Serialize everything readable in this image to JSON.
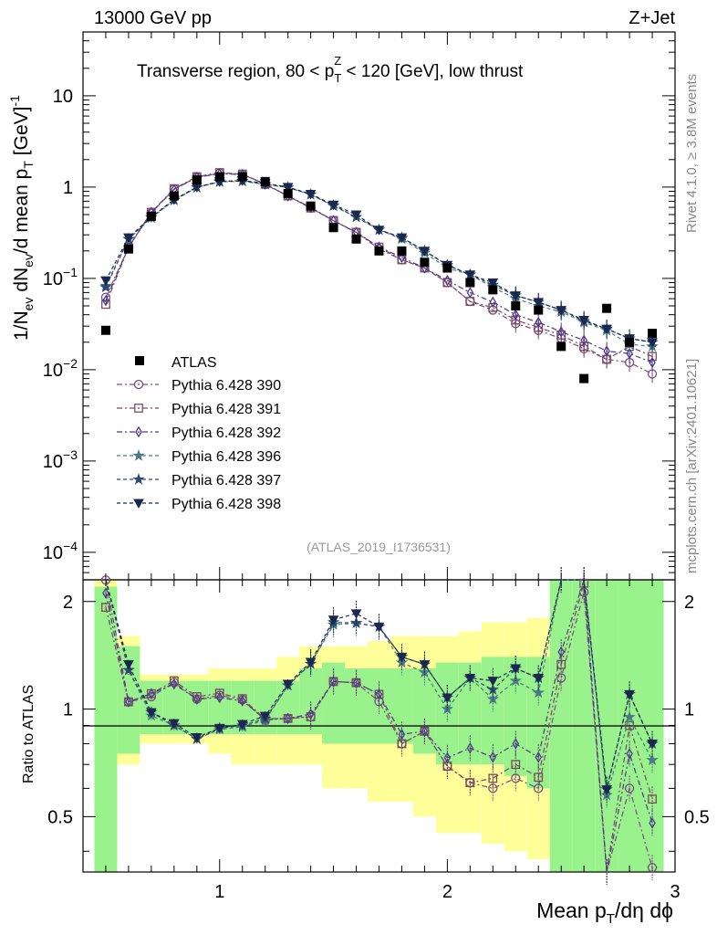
{
  "chart_data": {
    "type": "scatter",
    "header_left": "13000 GeV pp",
    "header_right": "Z+Jet",
    "title": "Transverse region, 80 < p",
    "title_sup": "Z",
    "title_sub": "T",
    "title_tail": " < 120 [GeV], low thrust",
    "ylabel_main": "1/N",
    "ylabel_sub1": "ev",
    "ylabel_mid": " dN",
    "ylabel_sub2": "ev",
    "ylabel_mid2": "/d mean p",
    "ylabel_sub3": "T",
    "ylabel_tail": " [GeV]",
    "ylabel_sup": "-1",
    "ratio_ylabel": "Ratio to ATLAS",
    "xlabel_main": "Mean p",
    "xlabel_sub": "T",
    "xlabel_tail": "/dη dϕ",
    "side_text_1": "Rivet 4.1.0, ≥ 3.8M events",
    "side_text_2": "mcplots.cern.ch [arXiv:2401.10621]",
    "analysis_id": "(ATLAS_2019_I1736531)",
    "xlim": [
      0.4,
      3.0
    ],
    "ylim": [
      5e-05,
      50
    ],
    "ratio_ylim": [
      0.35,
      2.3
    ],
    "x_ticks": [
      "1",
      "2",
      "3"
    ],
    "y_tick_labels": [
      {
        "value": 10,
        "base": "10",
        "exp": ""
      },
      {
        "value": 1,
        "base": "1",
        "exp": ""
      },
      {
        "value": 0.1,
        "base": "10",
        "exp": "−1"
      },
      {
        "value": 0.01,
        "base": "10",
        "exp": "−2"
      },
      {
        "value": 0.001,
        "base": "10",
        "exp": "−3"
      },
      {
        "value": 0.0001,
        "base": "10",
        "exp": "−4"
      }
    ],
    "ratio_ticks": [
      "0.5",
      "1",
      "2"
    ],
    "x": [
      0.5,
      0.6,
      0.7,
      0.8,
      0.9,
      1.0,
      1.1,
      1.2,
      1.3,
      1.4,
      1.5,
      1.6,
      1.7,
      1.8,
      1.9,
      2.0,
      2.1,
      2.2,
      2.3,
      2.4,
      2.5,
      2.6,
      2.7,
      2.8,
      2.9
    ],
    "atlas": {
      "name": "ATLAS",
      "values": [
        0.027,
        0.21,
        0.48,
        0.8,
        1.2,
        1.3,
        1.3,
        1.15,
        0.85,
        0.62,
        0.36,
        0.27,
        0.2,
        0.2,
        0.15,
        0.13,
        0.09,
        0.075,
        0.05,
        0.045,
        0.018,
        0.008,
        0.047,
        0.02,
        0.025
      ]
    },
    "series": [
      {
        "name": "Pythia 6.428 390",
        "color": "#7d4a86",
        "marker": "circle",
        "values": [
          0.062,
          0.22,
          0.52,
          0.95,
          1.28,
          1.42,
          1.38,
          1.07,
          0.8,
          0.59,
          0.43,
          0.32,
          0.21,
          0.16,
          0.13,
          0.09,
          0.056,
          0.045,
          0.032,
          0.027,
          0.022,
          0.017,
          0.013,
          0.012,
          0.009
        ]
      },
      {
        "name": "Pythia 6.428 391",
        "color": "#7a4a5e",
        "marker": "square",
        "values": [
          0.052,
          0.22,
          0.53,
          0.96,
          1.3,
          1.44,
          1.39,
          1.08,
          0.8,
          0.59,
          0.43,
          0.32,
          0.22,
          0.16,
          0.13,
          0.09,
          0.056,
          0.048,
          0.035,
          0.029,
          0.024,
          0.018,
          0.013,
          0.018,
          0.014
        ]
      },
      {
        "name": "Pythia 6.428 392",
        "color": "#4e3a8a",
        "marker": "diamond",
        "values": [
          0.057,
          0.22,
          0.53,
          0.94,
          1.28,
          1.4,
          1.37,
          1.08,
          0.8,
          0.6,
          0.43,
          0.32,
          0.22,
          0.17,
          0.13,
          0.095,
          0.07,
          0.055,
          0.04,
          0.033,
          0.026,
          0.021,
          0.016,
          0.015,
          0.012
        ]
      },
      {
        "name": "Pythia 6.428 396",
        "color": "#4a7a85",
        "marker": "star",
        "values": [
          0.083,
          0.27,
          0.46,
          0.72,
          0.99,
          1.14,
          1.16,
          1.07,
          0.99,
          0.83,
          0.62,
          0.47,
          0.34,
          0.27,
          0.19,
          0.13,
          0.11,
          0.08,
          0.06,
          0.05,
          0.043,
          0.033,
          0.027,
          0.019,
          0.018
        ]
      },
      {
        "name": "Pythia 6.428 397",
        "color": "#2e4a6e",
        "marker": "star",
        "values": [
          0.08,
          0.27,
          0.47,
          0.72,
          0.99,
          1.15,
          1.17,
          1.08,
          0.99,
          0.83,
          0.63,
          0.47,
          0.34,
          0.28,
          0.2,
          0.14,
          0.11,
          0.085,
          0.065,
          0.055,
          0.045,
          0.034,
          0.028,
          0.022,
          0.02
        ]
      },
      {
        "name": "Pythia 6.428 398",
        "color": "#1a2850",
        "marker": "triangle-down",
        "values": [
          0.095,
          0.28,
          0.47,
          0.73,
          1.0,
          1.15,
          1.18,
          1.1,
          1.0,
          0.84,
          0.64,
          0.5,
          0.34,
          0.28,
          0.2,
          0.14,
          0.11,
          0.09,
          0.065,
          0.055,
          0.045,
          0.035,
          0.028,
          0.022,
          0.02
        ]
      }
    ],
    "band_inner": [
      2.2,
      1.5,
      1.2,
      1.2,
      1.2,
      1.2,
      1.2,
      1.2,
      1.2,
      1.3,
      1.35,
      1.3,
      1.3,
      1.3,
      1.3,
      1.35,
      1.35,
      1.4,
      1.4,
      1.4,
      2.3,
      2.3,
      2.3,
      2.3,
      2.3
    ],
    "band_inner_low": [
      0.35,
      0.75,
      0.85,
      0.85,
      0.85,
      0.85,
      0.85,
      0.85,
      0.85,
      0.85,
      0.8,
      0.8,
      0.8,
      0.8,
      0.75,
      0.7,
      0.7,
      0.7,
      0.65,
      0.6,
      0.35,
      0.35,
      0.35,
      0.35,
      0.35
    ],
    "band_outer": [
      2.3,
      1.6,
      1.25,
      1.25,
      1.25,
      1.3,
      1.3,
      1.3,
      1.4,
      1.5,
      1.5,
      1.5,
      1.55,
      1.6,
      1.6,
      1.6,
      1.65,
      1.75,
      1.75,
      1.8,
      2.3,
      2.3,
      2.3,
      2.3,
      2.3
    ],
    "band_outer_low": [
      0.35,
      0.7,
      0.8,
      0.8,
      0.8,
      0.75,
      0.7,
      0.7,
      0.7,
      0.7,
      0.6,
      0.6,
      0.55,
      0.55,
      0.5,
      0.45,
      0.45,
      0.42,
      0.4,
      0.38,
      0.35,
      0.35,
      0.35,
      0.35,
      0.35
    ]
  }
}
